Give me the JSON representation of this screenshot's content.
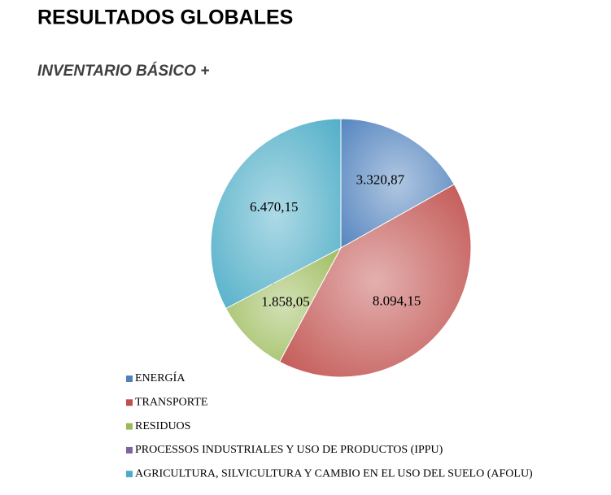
{
  "chart_data": {
    "type": "pie",
    "title": "RESULTADOS GLOBALES",
    "subtitle": "INVENTARIO BÁSICO +",
    "categories": [
      "ENERGÍA",
      "TRANSPORTE",
      "RESIDUOS",
      "PROCESSOS INDUSTRIALES Y USO DE PRODUCTOS (IPPU)",
      "AGRICULTURA, SILVICULTURA Y CAMBIO EN EL USO DEL SUELO (AFOLU)"
    ],
    "values": [
      3320.87,
      8094.15,
      1858.05,
      0,
      6470.15
    ],
    "value_labels": [
      "3.320,87",
      "8.094,15",
      "1.858,05",
      "-",
      "6.470,15"
    ],
    "colors": [
      "#4f81bd",
      "#c0504d",
      "#9bbb59",
      "#8064a2",
      "#4bacc6"
    ],
    "legend": "bottom"
  }
}
